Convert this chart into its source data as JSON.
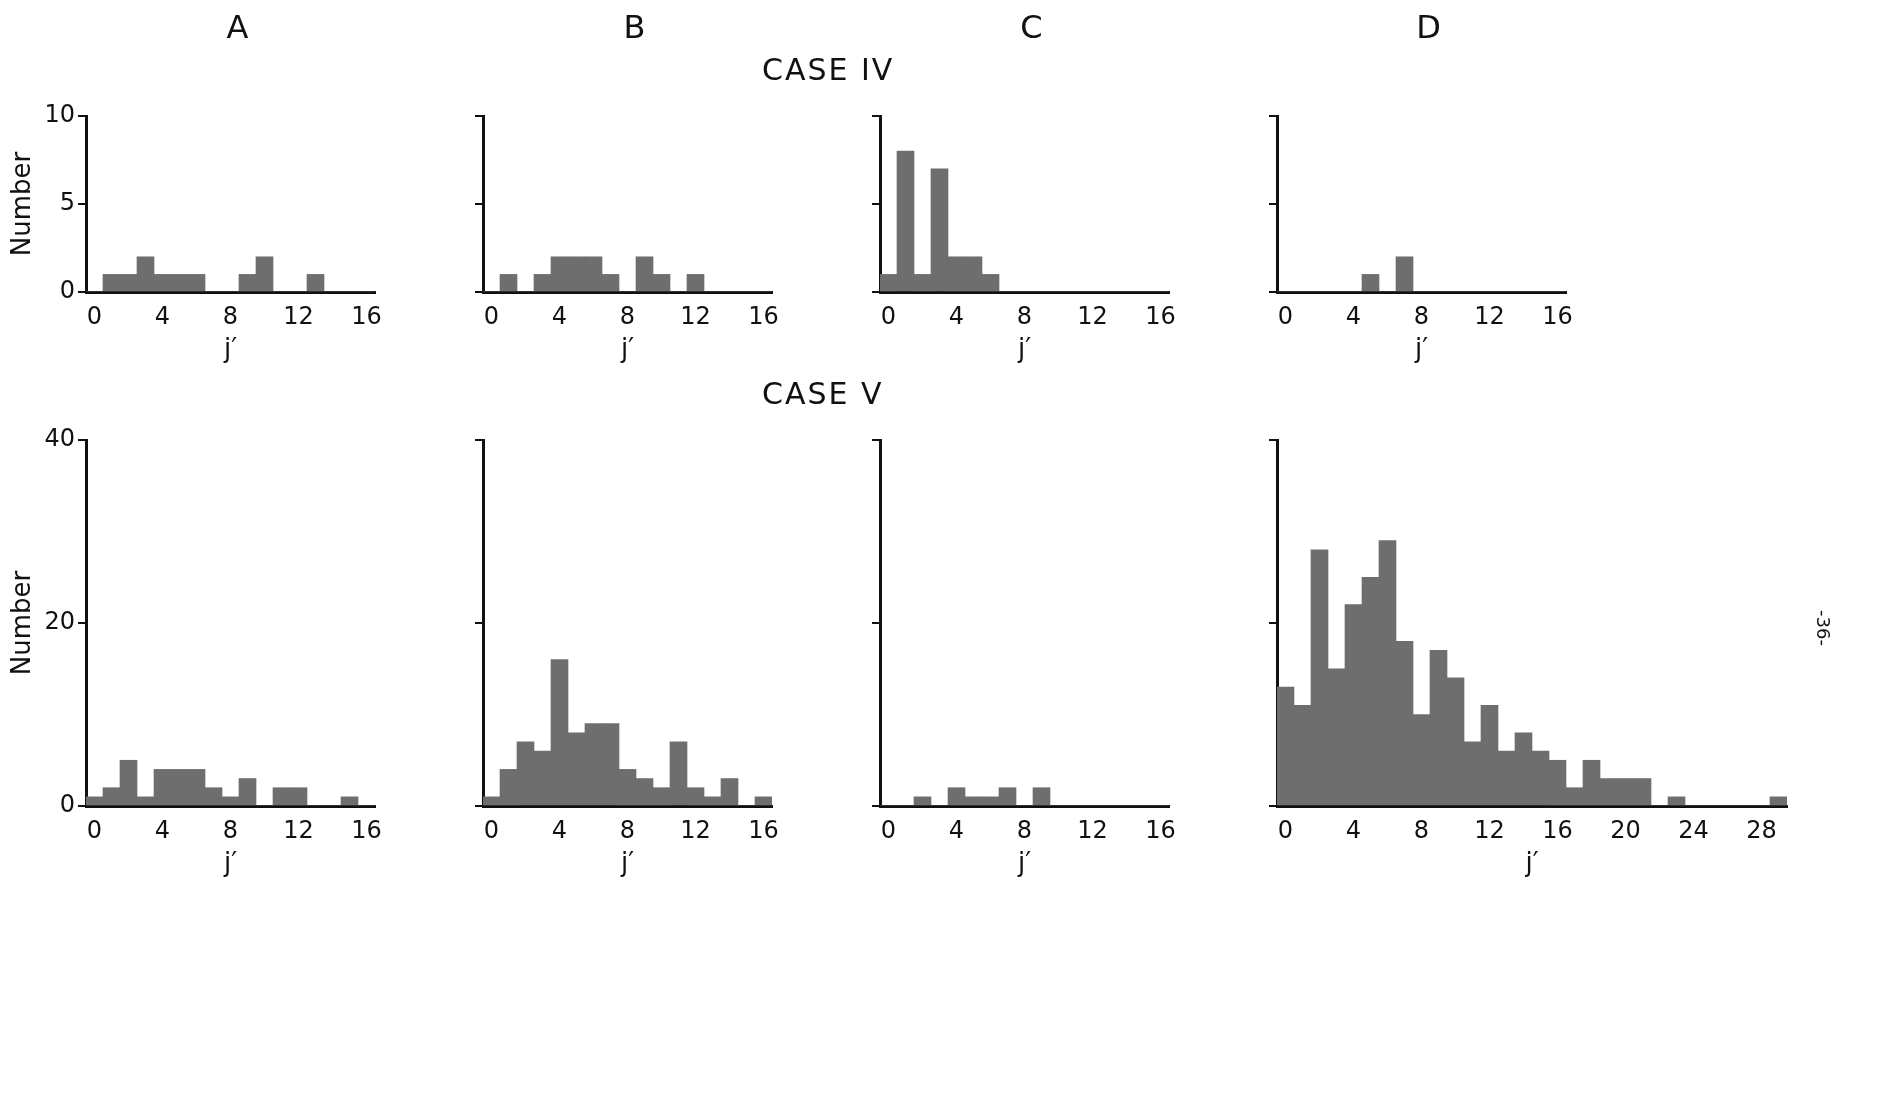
{
  "chart_data": [
    {
      "type": "histogram",
      "title": "A",
      "xlabel": "j′",
      "ylabel": "Number",
      "color": "#6e6e6e",
      "bins": [
        -0.5,
        0.5,
        1.5,
        2.5,
        3.5,
        4.5,
        5.5,
        6.5,
        7.5,
        8.5,
        9.5,
        10.5,
        11.5,
        12.5,
        13.5,
        14.5,
        15.5,
        16.5
      ],
      "values": [
        0,
        1,
        1,
        2,
        1,
        1,
        1,
        0,
        0,
        1,
        2,
        0,
        0,
        1,
        0,
        0,
        0
      ],
      "xlim": [
        -0.5,
        16.5
      ],
      "xticks": [
        0,
        4,
        8,
        12,
        16
      ],
      "ylim": [
        0,
        10
      ],
      "yticks": [
        0,
        5,
        10
      ]
    },
    {
      "type": "histogram",
      "title": "B",
      "xlabel": "j′",
      "color": "#6e6e6e",
      "bins": [
        -0.5,
        0.5,
        1.5,
        2.5,
        3.5,
        4.5,
        5.5,
        6.5,
        7.5,
        8.5,
        9.5,
        10.5,
        11.5,
        12.5,
        13.5,
        14.5,
        15.5,
        16.5
      ],
      "values": [
        0,
        1,
        0,
        1,
        2,
        2,
        2,
        1,
        0,
        2,
        1,
        0,
        1,
        0,
        0,
        0,
        0
      ],
      "xlim": [
        -0.5,
        16.5
      ],
      "xticks": [
        0,
        4,
        8,
        12,
        16
      ],
      "ylim": [
        0,
        10
      ],
      "yticks": [
        0,
        5,
        10
      ],
      "tick_labels": "x"
    },
    {
      "type": "histogram",
      "title": "C",
      "subtitle": "CASE IV",
      "xlabel": "j′",
      "color": "#6e6e6e",
      "bins": [
        -0.5,
        0.5,
        1.5,
        2.5,
        3.5,
        4.5,
        5.5,
        6.5,
        7.5,
        8.5,
        9.5,
        10.5,
        11.5,
        12.5,
        13.5,
        14.5,
        15.5,
        16.5
      ],
      "values": [
        1,
        8,
        1,
        7,
        2,
        2,
        1,
        0,
        0,
        0,
        0,
        0,
        0,
        0,
        0,
        0,
        0
      ],
      "xlim": [
        -0.5,
        16.5
      ],
      "xticks": [
        0,
        4,
        8,
        12,
        16
      ],
      "ylim": [
        0,
        10
      ],
      "yticks": [
        0,
        5,
        10
      ],
      "tick_labels": "x"
    },
    {
      "type": "histogram",
      "title": "D",
      "xlabel": "j′",
      "color": "#6e6e6e",
      "bins": [
        -0.5,
        0.5,
        1.5,
        2.5,
        3.5,
        4.5,
        5.5,
        6.5,
        7.5,
        8.5,
        9.5,
        10.5,
        11.5,
        12.5,
        13.5,
        14.5,
        15.5,
        16.5
      ],
      "values": [
        0,
        0,
        0,
        0,
        0,
        1,
        0,
        2,
        0,
        0,
        0,
        0,
        0,
        0,
        0,
        0,
        0
      ],
      "xlim": [
        -0.5,
        16.5
      ],
      "xticks": [
        0,
        4,
        8,
        12,
        16
      ],
      "ylim": [
        0,
        10
      ],
      "yticks": [
        0,
        5,
        10
      ],
      "tick_labels": "x"
    },
    {
      "type": "histogram",
      "xlabel": "j′",
      "ylabel": "Number",
      "color": "#6e6e6e",
      "bins": [
        -0.5,
        0.5,
        1.5,
        2.5,
        3.5,
        4.5,
        5.5,
        6.5,
        7.5,
        8.5,
        9.5,
        10.5,
        11.5,
        12.5,
        13.5,
        14.5,
        15.5,
        16.5
      ],
      "values": [
        1,
        2,
        5,
        1,
        4,
        4,
        4,
        2,
        1,
        3,
        0,
        2,
        2,
        0,
        0,
        1,
        0
      ],
      "xlim": [
        -0.5,
        16.5
      ],
      "xticks": [
        0,
        4,
        8,
        12,
        16
      ],
      "ylim": [
        0,
        40
      ],
      "yticks": [
        0,
        20,
        40
      ]
    },
    {
      "type": "histogram",
      "xlabel": "j′",
      "color": "#6e6e6e",
      "bins": [
        -0.5,
        0.5,
        1.5,
        2.5,
        3.5,
        4.5,
        5.5,
        6.5,
        7.5,
        8.5,
        9.5,
        10.5,
        11.5,
        12.5,
        13.5,
        14.5,
        15.5,
        16.5
      ],
      "values": [
        1,
        4,
        7,
        6,
        16,
        8,
        9,
        9,
        4,
        3,
        2,
        7,
        2,
        1,
        3,
        0,
        1
      ],
      "xlim": [
        -0.5,
        16.5
      ],
      "xticks": [
        0,
        4,
        8,
        12,
        16
      ],
      "ylim": [
        0,
        40
      ],
      "yticks": [
        0,
        20,
        40
      ],
      "tick_labels": "x"
    },
    {
      "type": "histogram",
      "xlabel": "j′",
      "color": "#6e6e6e",
      "bins": [
        -0.5,
        0.5,
        1.5,
        2.5,
        3.5,
        4.5,
        5.5,
        6.5,
        7.5,
        8.5,
        9.5,
        10.5,
        11.5,
        12.5,
        13.5,
        14.5,
        15.5,
        16.5
      ],
      "subtitle": "CASE V",
      "values": [
        0,
        0,
        1,
        0,
        2,
        1,
        1,
        2,
        0,
        2,
        0,
        0,
        0,
        0,
        0,
        0,
        0
      ],
      "xlim": [
        -0.5,
        16.5
      ],
      "xticks": [
        0,
        4,
        8,
        12,
        16
      ],
      "ylim": [
        0,
        40
      ],
      "yticks": [
        0,
        20,
        40
      ],
      "tick_labels": "x"
    },
    {
      "type": "histogram",
      "xlabel": "j′",
      "color": "#6e6e6e",
      "annotations": [
        "-36-"
      ],
      "bins": [
        -0.5,
        0.5,
        1.5,
        2.5,
        3.5,
        4.5,
        5.5,
        6.5,
        7.5,
        8.5,
        9.5,
        10.5,
        11.5,
        12.5,
        13.5,
        14.5,
        15.5,
        16.5,
        17.5,
        18.5,
        19.5,
        20.5,
        21.5,
        22.5,
        23.5,
        24.5,
        25.5,
        26.5,
        27.5,
        28.5,
        29.5
      ],
      "values": [
        13,
        11,
        28,
        15,
        22,
        25,
        29,
        18,
        10,
        17,
        14,
        7,
        11,
        6,
        8,
        6,
        5,
        2,
        5,
        3,
        3,
        3,
        0,
        1,
        0,
        0,
        0,
        0,
        0,
        1
      ],
      "xlim": [
        -0.5,
        29.5
      ],
      "xticks": [
        0,
        4,
        8,
        12,
        16,
        20,
        24,
        28
      ],
      "ylim": [
        0,
        40
      ],
      "yticks": [
        0,
        20,
        40
      ],
      "tick_labels": "x"
    }
  ]
}
